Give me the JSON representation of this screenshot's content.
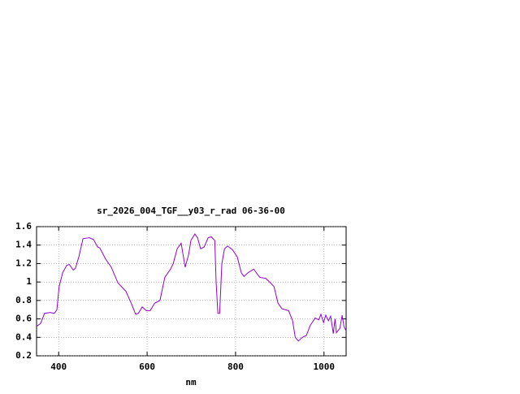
{
  "chart_data": {
    "type": "line",
    "title": "sr_2026_004_TGF__y03_r_rad 06-36-00",
    "x_label": "nm",
    "x": [
      350,
      359,
      368,
      381,
      390,
      396,
      401,
      409,
      418,
      424,
      433,
      438,
      446,
      455,
      469,
      479,
      488,
      493,
      506,
      519,
      534,
      552,
      565,
      574,
      580,
      589,
      598,
      607,
      617,
      629,
      640,
      653,
      659,
      668,
      677,
      686,
      694,
      699,
      708,
      714,
      721,
      729,
      738,
      745,
      753,
      756,
      760,
      764,
      769,
      775,
      782,
      793,
      804,
      813,
      819,
      828,
      841,
      850,
      855,
      868,
      877,
      887,
      896,
      905,
      920,
      929,
      935,
      942,
      951,
      960,
      969,
      980,
      988,
      993,
      999,
      1004,
      1010,
      1015,
      1021,
      1025,
      1028,
      1036,
      1041,
      1045,
      1050
    ],
    "series": [
      {
        "color": "#9400d3",
        "values": [
          0.52,
          0.55,
          0.66,
          0.67,
          0.66,
          0.7,
          0.95,
          1.1,
          1.18,
          1.19,
          1.13,
          1.15,
          1.28,
          1.47,
          1.48,
          1.46,
          1.38,
          1.37,
          1.25,
          1.16,
          0.99,
          0.9,
          0.76,
          0.65,
          0.66,
          0.73,
          0.69,
          0.69,
          0.77,
          0.8,
          1.05,
          1.14,
          1.2,
          1.36,
          1.42,
          1.16,
          1.3,
          1.45,
          1.52,
          1.48,
          1.36,
          1.38,
          1.48,
          1.49,
          1.45,
          1.0,
          0.66,
          0.66,
          1.2,
          1.36,
          1.39,
          1.35,
          1.27,
          1.1,
          1.06,
          1.1,
          1.14,
          1.08,
          1.05,
          1.04,
          1.0,
          0.95,
          0.77,
          0.71,
          0.69,
          0.58,
          0.4,
          0.36,
          0.4,
          0.42,
          0.53,
          0.61,
          0.59,
          0.65,
          0.56,
          0.64,
          0.58,
          0.63,
          0.44,
          0.6,
          0.45,
          0.5,
          0.64,
          0.52,
          0.47
        ]
      }
    ],
    "xlim": [
      350,
      1050
    ],
    "xticks": [
      400,
      600,
      800,
      1000
    ],
    "ylim": [
      0.2,
      1.6
    ],
    "yticks": [
      0.2,
      0.4,
      0.6,
      0.8,
      1,
      1.2,
      1.4,
      1.6
    ],
    "grid": true
  }
}
